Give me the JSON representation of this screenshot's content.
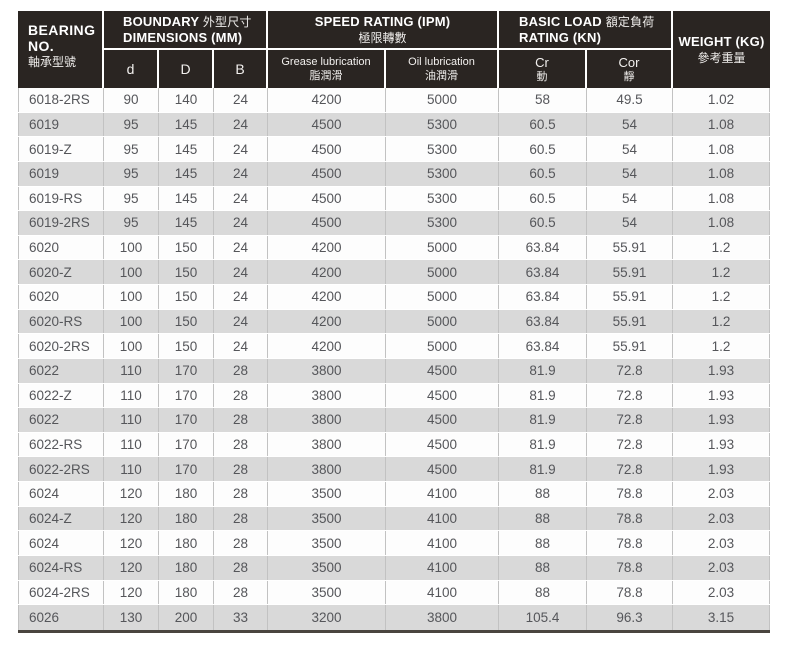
{
  "colors": {
    "header_bg": "#2a2522",
    "header_text": "#ffffff",
    "row_white": "#fdfdfd",
    "row_gray": "#d9d9d9",
    "data_text": "#55565a",
    "table_bottom_border": "#4a453f"
  },
  "header": {
    "bearing": {
      "line1": "BEARING",
      "line2": "NO.",
      "zh": "軸承型號"
    },
    "boundary": {
      "en": "BOUNDARY",
      "zh": "外型尺寸",
      "line2": "DIMENSIONS (MM)"
    },
    "speed": {
      "en": "SPEED RATING (IPM)",
      "zh": "極限轉數"
    },
    "basic": {
      "en": "BASIC LOAD",
      "zh": "額定負荷",
      "line2": "RATING (KN)"
    },
    "weight": {
      "en": "WEIGHT (KG)",
      "zh": "參考重量"
    },
    "sub": {
      "d": "d",
      "D": "D",
      "B": "B",
      "grease_en": "Grease lubrication",
      "grease_zh": "脂潤滑",
      "oil_en": "Oil lubrication",
      "oil_zh": "油潤滑",
      "cr_en": "Cr",
      "cr_zh": "動",
      "cor_en": "Cor",
      "cor_zh": "靜"
    }
  },
  "row_keys": [
    "no",
    "d",
    "D",
    "B",
    "grease",
    "oil",
    "cr",
    "cor",
    "weight"
  ],
  "rows": [
    [
      "6018-2RS",
      "90",
      "140",
      "24",
      "4200",
      "5000",
      "58",
      "49.5",
      "1.02"
    ],
    [
      "6019",
      "95",
      "145",
      "24",
      "4500",
      "5300",
      "60.5",
      "54",
      "1.08"
    ],
    [
      "6019-Z",
      "95",
      "145",
      "24",
      "4500",
      "5300",
      "60.5",
      "54",
      "1.08"
    ],
    [
      "6019",
      "95",
      "145",
      "24",
      "4500",
      "5300",
      "60.5",
      "54",
      "1.08"
    ],
    [
      "6019-RS",
      "95",
      "145",
      "24",
      "4500",
      "5300",
      "60.5",
      "54",
      "1.08"
    ],
    [
      "6019-2RS",
      "95",
      "145",
      "24",
      "4500",
      "5300",
      "60.5",
      "54",
      "1.08"
    ],
    [
      "6020",
      "100",
      "150",
      "24",
      "4200",
      "5000",
      "63.84",
      "55.91",
      "1.2"
    ],
    [
      "6020-Z",
      "100",
      "150",
      "24",
      "4200",
      "5000",
      "63.84",
      "55.91",
      "1.2"
    ],
    [
      "6020",
      "100",
      "150",
      "24",
      "4200",
      "5000",
      "63.84",
      "55.91",
      "1.2"
    ],
    [
      "6020-RS",
      "100",
      "150",
      "24",
      "4200",
      "5000",
      "63.84",
      "55.91",
      "1.2"
    ],
    [
      "6020-2RS",
      "100",
      "150",
      "24",
      "4200",
      "5000",
      "63.84",
      "55.91",
      "1.2"
    ],
    [
      "6022",
      "110",
      "170",
      "28",
      "3800",
      "4500",
      "81.9",
      "72.8",
      "1.93"
    ],
    [
      "6022-Z",
      "110",
      "170",
      "28",
      "3800",
      "4500",
      "81.9",
      "72.8",
      "1.93"
    ],
    [
      "6022",
      "110",
      "170",
      "28",
      "3800",
      "4500",
      "81.9",
      "72.8",
      "1.93"
    ],
    [
      "6022-RS",
      "110",
      "170",
      "28",
      "3800",
      "4500",
      "81.9",
      "72.8",
      "1.93"
    ],
    [
      "6022-2RS",
      "110",
      "170",
      "28",
      "3800",
      "4500",
      "81.9",
      "72.8",
      "1.93"
    ],
    [
      "6024",
      "120",
      "180",
      "28",
      "3500",
      "4100",
      "88",
      "78.8",
      "2.03"
    ],
    [
      "6024-Z",
      "120",
      "180",
      "28",
      "3500",
      "4100",
      "88",
      "78.8",
      "2.03"
    ],
    [
      "6024",
      "120",
      "180",
      "28",
      "3500",
      "4100",
      "88",
      "78.8",
      "2.03"
    ],
    [
      "6024-RS",
      "120",
      "180",
      "28",
      "3500",
      "4100",
      "88",
      "78.8",
      "2.03"
    ],
    [
      "6024-2RS",
      "120",
      "180",
      "28",
      "3500",
      "4100",
      "88",
      "78.8",
      "2.03"
    ],
    [
      "6026",
      "130",
      "200",
      "33",
      "3200",
      "3800",
      "105.4",
      "96.3",
      "3.15"
    ]
  ]
}
